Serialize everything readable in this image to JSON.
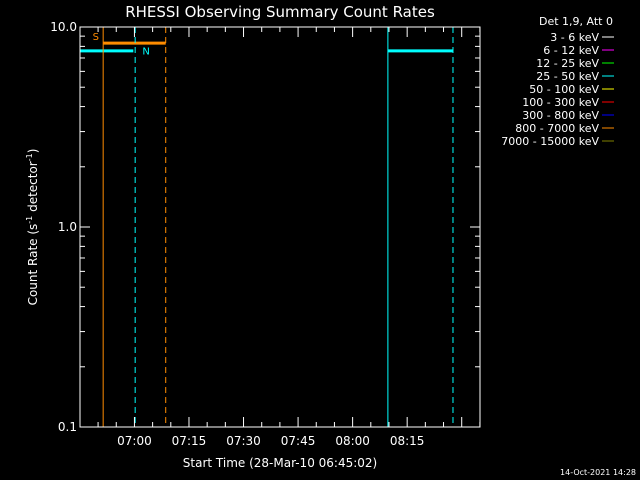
{
  "chart_data": {
    "type": "line",
    "title": "RHESSI Observing Summary Count Rates",
    "xlabel": "Start Time (28-Mar-10 06:45:02)",
    "ylabel_main": "Count Rate (s",
    "ylabel_sup1": "-1",
    "ylabel_mid": " detector",
    "ylabel_sup2": "-1",
    "ylabel_end": ")",
    "yscale": "log",
    "ylim": [
      0.1,
      10.0
    ],
    "yticks": [
      {
        "value": 0.1,
        "label": "0.1"
      },
      {
        "value": 1.0,
        "label": "1.0"
      },
      {
        "value": 10.0,
        "label": "10.0"
      }
    ],
    "xlim_minutes": [
      -14.97,
      95.03
    ],
    "xticks": [
      {
        "value": 0,
        "label": "07:00"
      },
      {
        "value": 15,
        "label": "07:15"
      },
      {
        "value": 30,
        "label": "07:30"
      },
      {
        "value": 45,
        "label": "07:45"
      },
      {
        "value": 60,
        "label": "08:00"
      },
      {
        "value": 75,
        "label": "08:15"
      }
    ],
    "legend": {
      "header": "Det 1,9, Att 0",
      "placement": "right",
      "entries": [
        {
          "label": "3 - 6 keV",
          "color": "#ffffff"
        },
        {
          "label": "6 - 12 keV",
          "color": "#ff00ff"
        },
        {
          "label": "12 - 25 keV",
          "color": "#00ff00"
        },
        {
          "label": "25 - 50 keV",
          "color": "#00ffff"
        },
        {
          "label": "50 - 100 keV",
          "color": "#ffff00"
        },
        {
          "label": "100 - 300 keV",
          "color": "#ff0000"
        },
        {
          "label": "300 - 800 keV",
          "color": "#0000ff"
        },
        {
          "label": "800 - 7000 keV",
          "color": "#ff8c00"
        },
        {
          "label": "7000 - 15000 keV",
          "color": "#808000"
        }
      ]
    },
    "series": [
      {
        "color": "#00ffff",
        "segments": [
          {
            "x": [
              -14.97,
              -0.3
            ],
            "y": [
              7.6,
              7.6
            ]
          },
          {
            "x": [
              69.7,
              87.6
            ],
            "y": [
              7.6,
              7.6
            ]
          }
        ]
      },
      {
        "color": "#ff8c00",
        "segments": [
          {
            "x": [
              -8.5,
              8.6
            ],
            "y": [
              8.3,
              8.3
            ]
          }
        ]
      }
    ],
    "vlines": [
      {
        "x": -14.97,
        "color": "#00ffff",
        "style": "solid"
      },
      {
        "x": 0.2,
        "color": "#00ffff",
        "style": "dashed"
      },
      {
        "x": 69.7,
        "color": "#00ffff",
        "style": "solid"
      },
      {
        "x": 87.6,
        "color": "#00ffff",
        "style": "dashed"
      },
      {
        "x": -8.6,
        "color": "#ff8c00",
        "style": "solid"
      },
      {
        "x": 8.6,
        "color": "#ff8c00",
        "style": "dashed"
      }
    ],
    "markers": [
      {
        "label": "S",
        "x": -11.5,
        "y": 8.6,
        "color": "#ff8c00"
      },
      {
        "label": "N",
        "x": 2.2,
        "y": 7.3,
        "color": "#00ffff"
      }
    ],
    "grid": false
  },
  "timestamp": "14-Oct-2021 14:28"
}
